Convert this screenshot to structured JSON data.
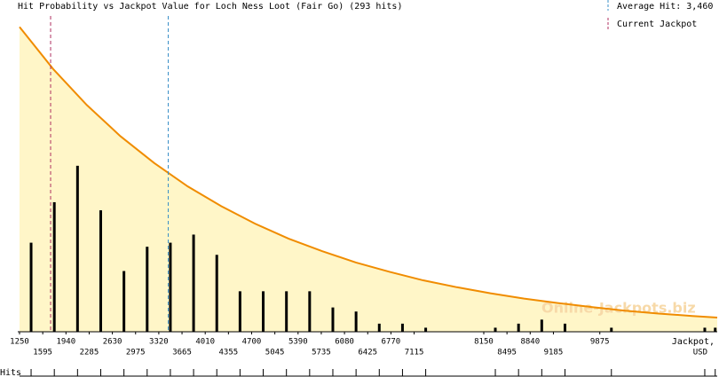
{
  "chart_data": {
    "type": "bar",
    "title": "Hit Probability vs Jackpot Value for Loch Ness Loot (Fair Go) (293 hits)",
    "x": [
      1422,
      1767,
      2112,
      2457,
      2802,
      3147,
      3492,
      3837,
      4182,
      4527,
      4872,
      5217,
      5562,
      5907,
      6252,
      6597,
      6942,
      7287,
      8322,
      8667,
      9012,
      9357,
      10047,
      11435,
      11590
    ],
    "values": [
      22,
      32,
      41,
      30,
      15,
      21,
      22,
      24,
      19,
      10,
      10,
      10,
      10,
      6,
      5,
      2,
      2,
      1,
      1,
      2,
      3,
      2,
      1,
      1,
      1
    ],
    "color": "#000000",
    "curve": {
      "x": [
        1250,
        1750,
        2250,
        2750,
        3250,
        3750,
        4250,
        4750,
        5250,
        5750,
        6250,
        6750,
        7250,
        7750,
        8250,
        8750,
        9250,
        9750,
        10250,
        10750,
        11250,
        11620
      ],
      "values": [
        75.3,
        64.9,
        56.0,
        48.3,
        41.7,
        35.9,
        31.0,
        26.7,
        23.0,
        19.9,
        17.1,
        14.8,
        12.7,
        11.0,
        9.5,
        8.2,
        7.1,
        6.1,
        5.2,
        4.5,
        3.9,
        3.5
      ],
      "color": "#f08c00",
      "fill": "#fff6c8"
    },
    "xlim": [
      1250,
      11620
    ],
    "ylim": [
      0,
      78
    ],
    "xticks": [
      1250,
      1595,
      1940,
      2285,
      2630,
      2975,
      3320,
      3665,
      4010,
      4355,
      4700,
      5045,
      5390,
      5735,
      6080,
      6425,
      6770,
      7115,
      8150,
      8495,
      8840,
      9185,
      9875
    ],
    "average_hit": {
      "value": 3460,
      "label": "Average Hit: 3,460",
      "color": "#3a8fc8"
    },
    "current_jackpot": {
      "value": 1712,
      "label": "Current Jackpot",
      "color": "#b03060"
    },
    "x_label": [
      "Jackpot,",
      "USD"
    ],
    "rug_label": "Hits",
    "watermark": "Online-Jackpots.biz"
  }
}
